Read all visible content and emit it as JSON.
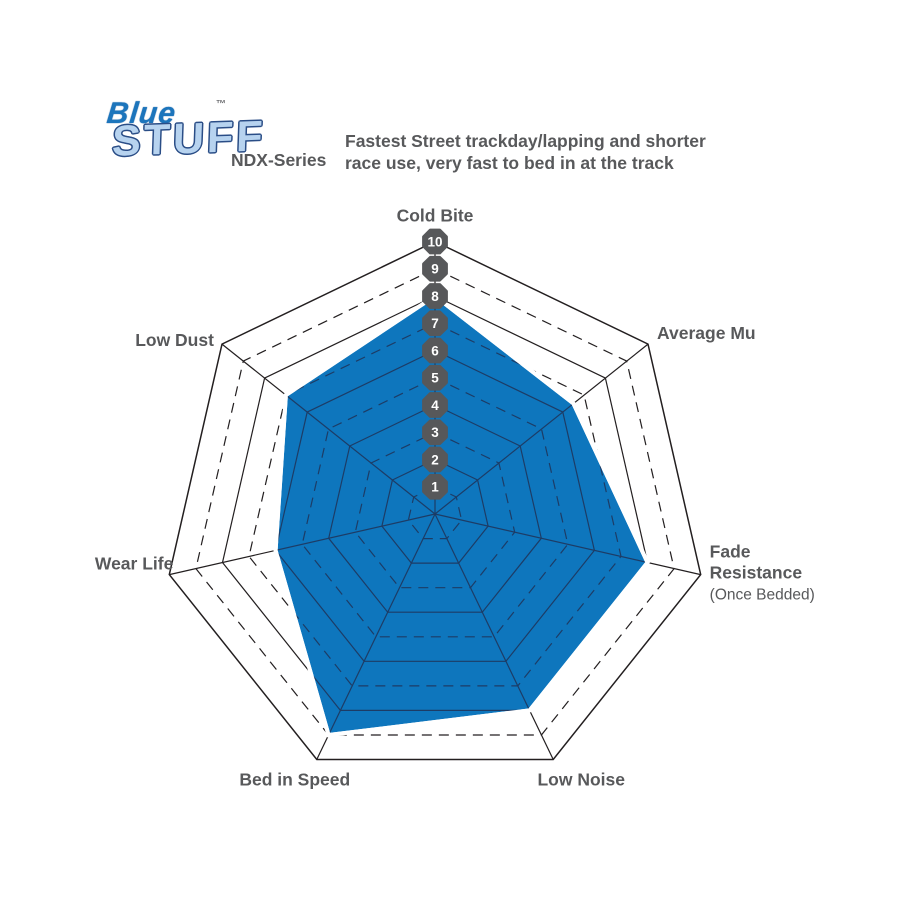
{
  "header": {
    "logo": {
      "word1": "Blue",
      "word2": "STUFF",
      "tm": "™",
      "series": "NDX-Series"
    },
    "description_lines": [
      "Fastest Street trackday/lapping and shorter",
      "race use, very fast to bed in at the track"
    ]
  },
  "chart_data": {
    "type": "radar",
    "title": "EBC Bluestuff NDX-Series brake pad performance",
    "categories": [
      "Cold Bite",
      "Average Mu",
      "Fade Resistance",
      "Low Noise",
      "Bed in Speed",
      "Wear Life",
      "Low Dust"
    ],
    "label_lines": [
      [
        "Cold Bite"
      ],
      [
        "Average Mu"
      ],
      [
        "Fade",
        "Resistance"
      ],
      [
        "Low Noise"
      ],
      [
        "Bed in Speed"
      ],
      [
        "Wear Life"
      ],
      [
        "Low Dust"
      ]
    ],
    "sublabels": [
      "",
      "",
      "(Once Bedded)",
      "",
      "",
      "",
      ""
    ],
    "values": [
      8,
      6.5,
      8,
      8,
      9,
      6,
      7
    ],
    "scale": {
      "min": 0,
      "max": 10,
      "ticks": [
        1,
        2,
        3,
        4,
        5,
        6,
        7,
        8,
        9,
        10
      ]
    },
    "layout_hints": {
      "axes_clockwise_from_top": true,
      "rings": 10,
      "odd_rings_dashed": true,
      "even_rings_solid": true,
      "spokes": true,
      "tick_badges_on_top_axis": true,
      "legend": "none"
    },
    "colors": {
      "fill": "#0E76BD",
      "polygon_stroke": "#ffffff",
      "grid_outside": "#231f20",
      "grid_inside": "#1d3c66",
      "badge": "#57585a",
      "badge_text": "#ffffff",
      "label": "#58595b"
    }
  }
}
